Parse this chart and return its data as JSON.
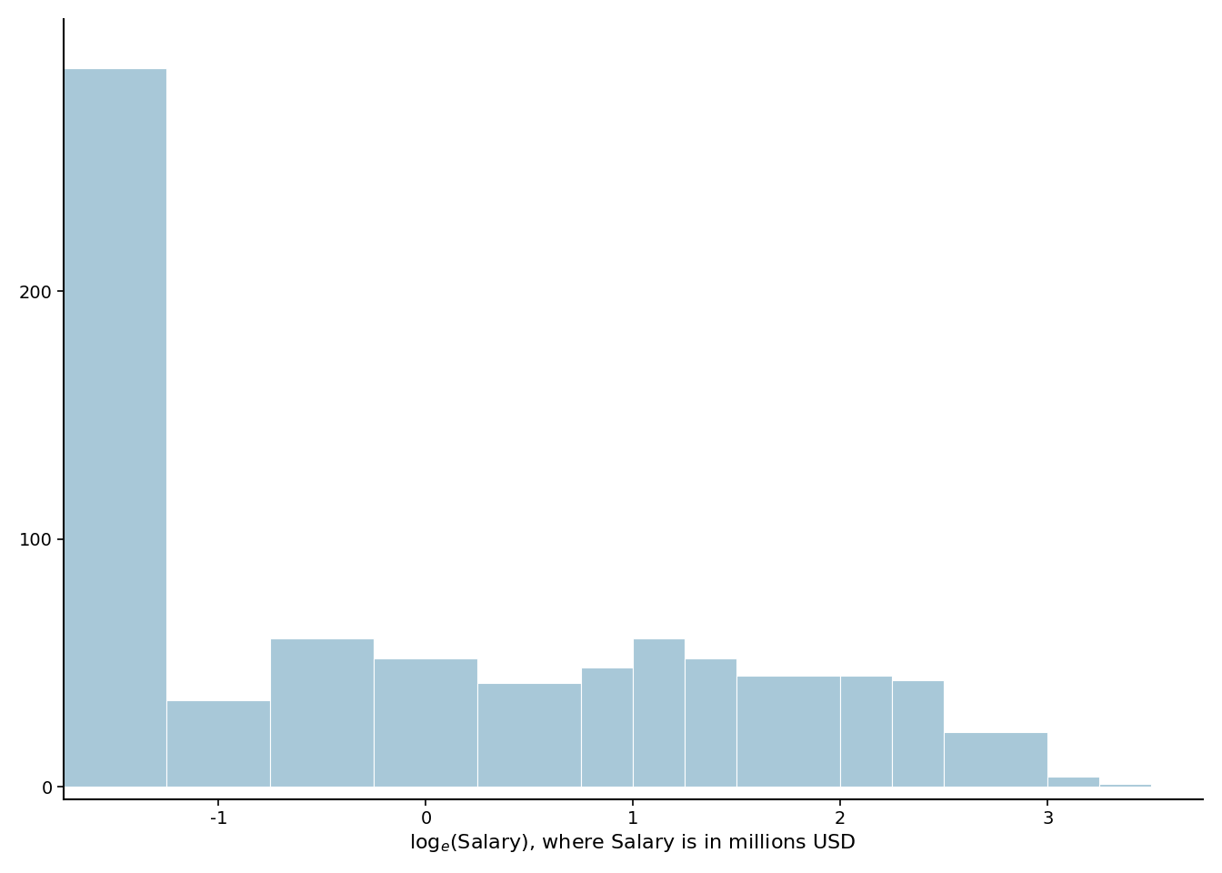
{
  "bar_color": "#a8c8d8",
  "bar_edgecolor": "white",
  "background_color": "white",
  "xlabel": "log$_e$(Salary), where Salary is in millions USD",
  "xlabel_fontsize": 16,
  "ylabel": "",
  "ytick_labels": [
    "0",
    "100",
    "200"
  ],
  "ytick_values": [
    0,
    100,
    200
  ],
  "xtick_labels": [
    "-1",
    "0",
    "1",
    "2",
    "3"
  ],
  "xtick_values": [
    -1,
    0,
    1,
    2,
    3
  ],
  "ylim": [
    -5,
    310
  ],
  "xlim": [
    -1.75,
    3.75
  ],
  "bin_edges": [
    -1.75,
    -1.25,
    -0.75,
    -0.25,
    0.25,
    0.75,
    1.0,
    1.25,
    1.5,
    2.0,
    2.25,
    2.5,
    3.0,
    3.25,
    3.5,
    3.75
  ],
  "bin_heights": [
    290,
    35,
    60,
    52,
    42,
    48,
    60,
    52,
    45,
    45,
    43,
    22,
    4,
    1,
    0
  ],
  "spine_color": "black",
  "tick_color": "black",
  "tick_fontsize": 14,
  "linewidth": 1.5
}
